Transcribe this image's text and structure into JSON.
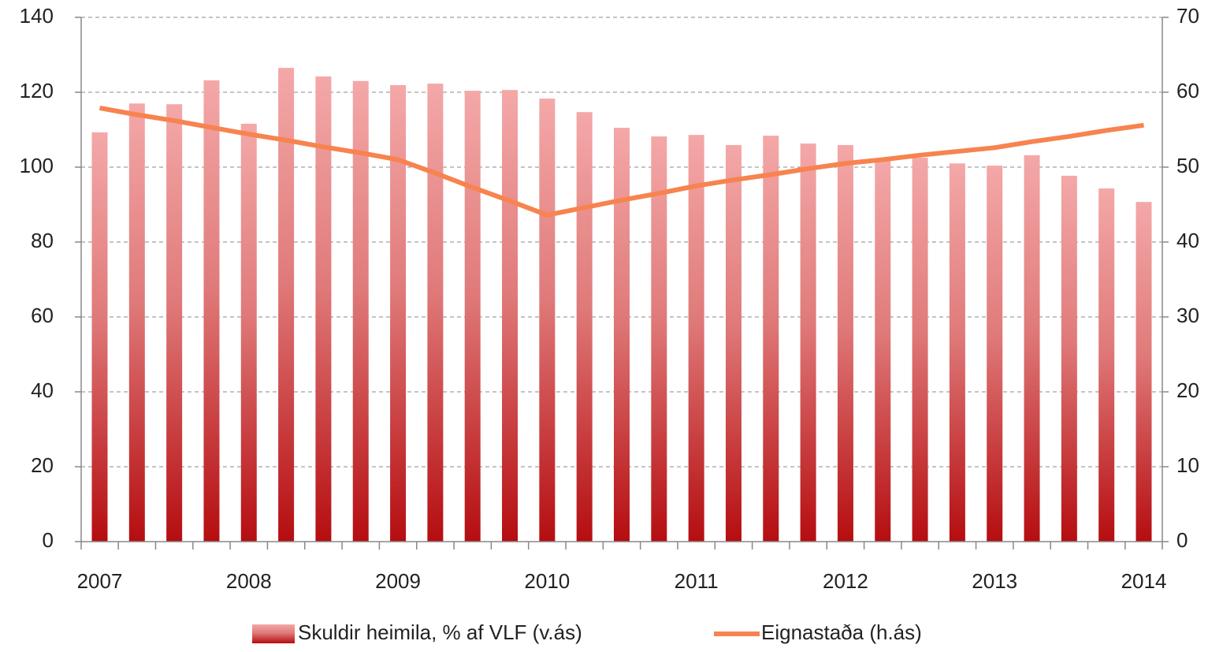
{
  "chart_data": {
    "type": "bar_line",
    "categories": [
      "2007",
      null,
      null,
      null,
      "2008",
      null,
      null,
      null,
      "2009",
      null,
      null,
      null,
      "2010",
      null,
      null,
      null,
      "2011",
      null,
      null,
      null,
      "2012",
      null,
      null,
      null,
      "2013",
      null,
      null,
      null,
      "2014"
    ],
    "series": [
      {
        "name": "Skuldir heimila, % af VLF (v.ás)",
        "type": "bar",
        "color": "#b50d10",
        "values": [
          109.3,
          117,
          116.8,
          123.2,
          111.6,
          126.5,
          124.2,
          123,
          121.9,
          122.3,
          120.4,
          120.6,
          118.3,
          114.7,
          110.5,
          108.2,
          108.6,
          105.9,
          108.4,
          106.3,
          105.9,
          102,
          102.5,
          101,
          100.4,
          103.2,
          97.7,
          94.3,
          90.7
        ]
      },
      {
        "name": "Eignastaða (h.ás)",
        "type": "line",
        "axis": "y2",
        "color": "#f7834f",
        "values": [
          57.9,
          57.0,
          56.2,
          55.3,
          54.4,
          53.6,
          52.7,
          51.9,
          51.0,
          49.2,
          47.3,
          45.5,
          43.6,
          44.6,
          45.6,
          46.5,
          47.5,
          48.3,
          49.0,
          49.8,
          50.5,
          51.0,
          51.6,
          52.1,
          52.6,
          53.4,
          54.1,
          54.9,
          55.6
        ]
      }
    ],
    "ylim": [
      0,
      140
    ],
    "yticks": [
      0,
      20,
      40,
      60,
      80,
      100,
      120,
      140
    ],
    "y2lim": [
      0,
      70
    ],
    "y2ticks": [
      0,
      10,
      20,
      30,
      40,
      50,
      60,
      70
    ],
    "grid": true,
    "legend": "bottom"
  }
}
